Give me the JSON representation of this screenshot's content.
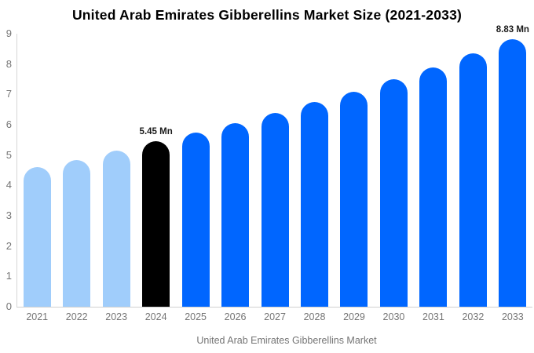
{
  "chart_data": {
    "type": "bar",
    "title": "United Arab Emirates Gibberellins Market Size (2021-2033)",
    "categories": [
      "2021",
      "2022",
      "2023",
      "2024",
      "2025",
      "2026",
      "2027",
      "2028",
      "2029",
      "2030",
      "2031",
      "2032",
      "2033"
    ],
    "values": [
      4.6,
      4.85,
      5.15,
      5.45,
      5.75,
      6.05,
      6.4,
      6.75,
      7.1,
      7.5,
      7.9,
      8.35,
      8.83
    ],
    "unit": "Mn",
    "xlabel": "",
    "ylabel": "",
    "ylim": [
      0,
      9
    ],
    "yticks": [
      0,
      1,
      2,
      3,
      4,
      5,
      6,
      7,
      8,
      9
    ],
    "grid": false,
    "legend_position": "bottom",
    "bar_colors": [
      "#a0cdfb",
      "#a0cdfb",
      "#a0cdfb",
      "#000000",
      "#0066ff",
      "#0066ff",
      "#0066ff",
      "#0066ff",
      "#0066ff",
      "#0066ff",
      "#0066ff",
      "#0066ff",
      "#0066ff"
    ],
    "annotations": [
      {
        "category": "2024",
        "text": "5.45 Mn"
      },
      {
        "category": "2033",
        "text": "8.83 Mn"
      }
    ]
  },
  "legend": {
    "label": "United Arab Emirates Gibberellins Market",
    "swatch_color": "#a0cdfb"
  },
  "colors": {
    "historical_bar": "#a0cdfb",
    "base_year_bar": "#000000",
    "forecast_bar": "#0066ff",
    "axis_text": "#757575",
    "axis_line": "#d6d6d6",
    "annotation_text": "#1a1a1a",
    "title_text": "#000000",
    "background": "#ffffff"
  }
}
